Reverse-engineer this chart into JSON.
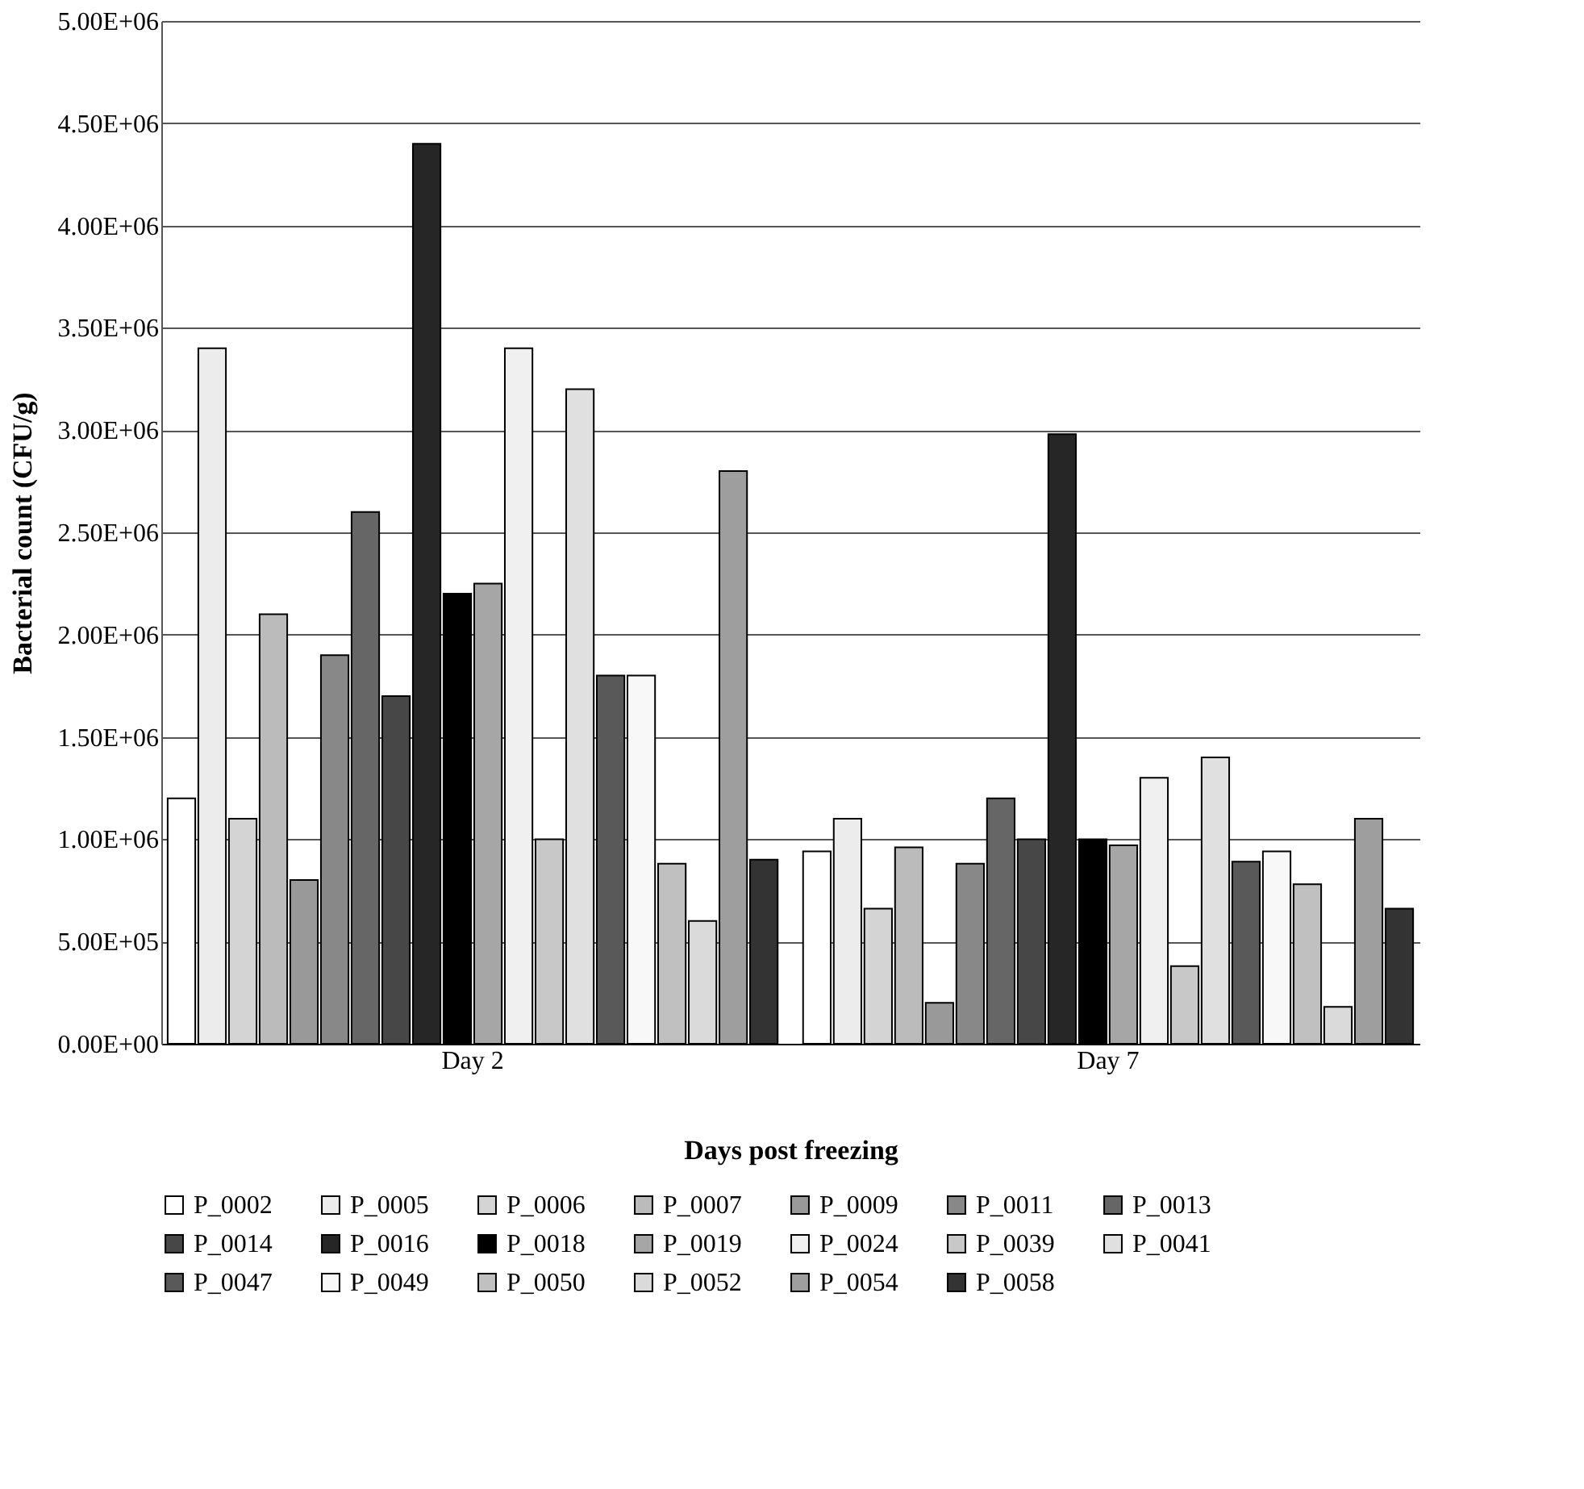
{
  "chart_data": {
    "type": "bar",
    "xlabel": "Days post freezing",
    "ylabel": "Bacterial count  (CFU/g)",
    "categories": [
      "Day 2",
      "Day 7"
    ],
    "series": [
      {
        "name": "P_0002",
        "color": "#ffffff",
        "values": [
          1200000,
          940000
        ]
      },
      {
        "name": "P_0005",
        "color": "#ececec",
        "values": [
          3400000,
          1100000
        ]
      },
      {
        "name": "P_0006",
        "color": "#d4d4d4",
        "values": [
          1100000,
          660000
        ]
      },
      {
        "name": "P_0007",
        "color": "#bbbbbb",
        "values": [
          2100000,
          960000
        ]
      },
      {
        "name": "P_0009",
        "color": "#999999",
        "values": [
          800000,
          200000
        ]
      },
      {
        "name": "P_0011",
        "color": "#888888",
        "values": [
          1900000,
          880000
        ]
      },
      {
        "name": "P_0013",
        "color": "#666666",
        "values": [
          2600000,
          1200000
        ]
      },
      {
        "name": "P_0014",
        "color": "#474747",
        "values": [
          1700000,
          1000000
        ]
      },
      {
        "name": "P_0016",
        "color": "#262626",
        "values": [
          4400000,
          2980000
        ]
      },
      {
        "name": "P_0018",
        "color": "#000000",
        "values": [
          2200000,
          1000000
        ]
      },
      {
        "name": "P_0019",
        "color": "#a6a6a6",
        "values": [
          2250000,
          970000
        ]
      },
      {
        "name": "P_0024",
        "color": "#f0f0f0",
        "values": [
          3400000,
          1300000
        ]
      },
      {
        "name": "P_0039",
        "color": "#c8c8c8",
        "values": [
          1000000,
          380000
        ]
      },
      {
        "name": "P_0041",
        "color": "#e0e0e0",
        "values": [
          3200000,
          1400000
        ]
      },
      {
        "name": "P_0047",
        "color": "#595959",
        "values": [
          1800000,
          890000
        ]
      },
      {
        "name": "P_0049",
        "color": "#f8f8f8",
        "values": [
          1800000,
          940000
        ]
      },
      {
        "name": "P_0050",
        "color": "#c0c0c0",
        "values": [
          880000,
          780000
        ]
      },
      {
        "name": "P_0052",
        "color": "#dadada",
        "values": [
          600000,
          180000
        ]
      },
      {
        "name": "P_0054",
        "color": "#9e9e9e",
        "values": [
          2800000,
          1100000
        ]
      },
      {
        "name": "P_0058",
        "color": "#333333",
        "values": [
          900000,
          660000
        ]
      }
    ],
    "ylim": [
      0,
      5000000
    ],
    "yticks": [
      {
        "value": 0,
        "label": "0.00E+00"
      },
      {
        "value": 500000,
        "label": "5.00E+05"
      },
      {
        "value": 1000000,
        "label": "1.00E+06"
      },
      {
        "value": 1500000,
        "label": "1.50E+06"
      },
      {
        "value": 2000000,
        "label": "2.00E+06"
      },
      {
        "value": 2500000,
        "label": "2.50E+06"
      },
      {
        "value": 3000000,
        "label": "3.00E+06"
      },
      {
        "value": 3500000,
        "label": "3.50E+06"
      },
      {
        "value": 4000000,
        "label": "4.00E+06"
      },
      {
        "value": 4500000,
        "label": "4.50E+06"
      },
      {
        "value": 5000000,
        "label": "5.00E+06"
      }
    ],
    "grid": "y",
    "legend": "bottom"
  }
}
